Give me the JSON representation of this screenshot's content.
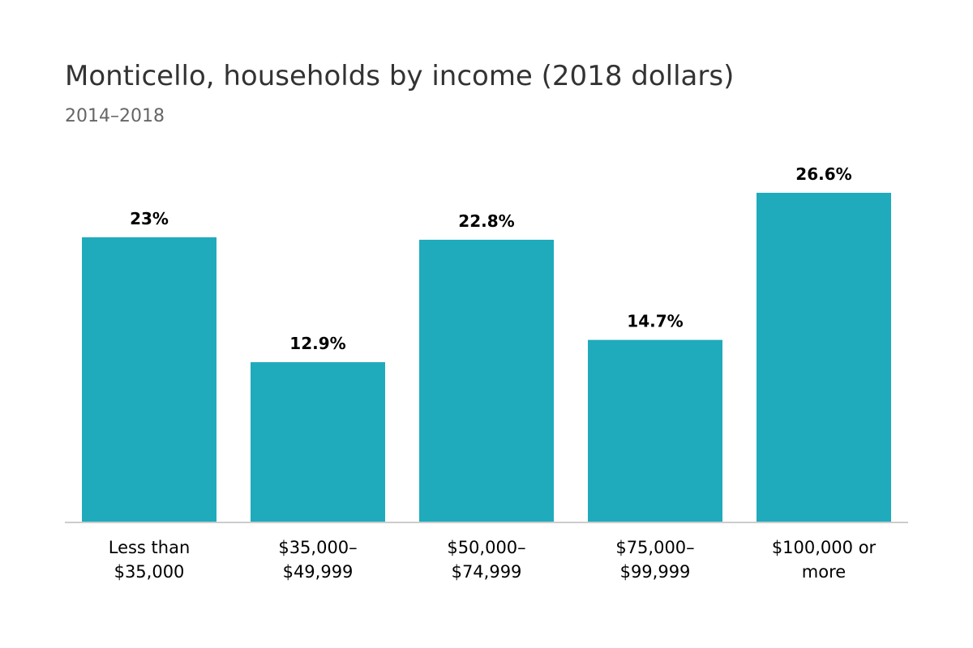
{
  "title": "Monticello, households by income (2018 dollars)",
  "subtitle": "2014–2018",
  "colors": {
    "bar": "#20abbc",
    "baseline": "#cccccc",
    "label": "#000000",
    "axis_text": "#000000"
  },
  "chart_data": {
    "type": "bar",
    "title": "Monticello, households by income (2018 dollars)",
    "subtitle": "2014–2018",
    "categories": [
      [
        "Less than",
        "$35,000"
      ],
      [
        "$35,000–",
        "$49,999"
      ],
      [
        "$50,000–",
        "$74,999"
      ],
      [
        "$75,000–",
        "$99,999"
      ],
      [
        "$100,000 or",
        "more"
      ]
    ],
    "values": [
      23,
      12.9,
      22.8,
      14.7,
      26.6
    ],
    "data_labels": [
      "23%",
      "12.9%",
      "22.8%",
      "14.7%",
      "26.6%"
    ],
    "unit": "%",
    "ylim": [
      0,
      26.6
    ],
    "xlabel": "",
    "ylabel": "",
    "grid": false,
    "legend": "none"
  }
}
